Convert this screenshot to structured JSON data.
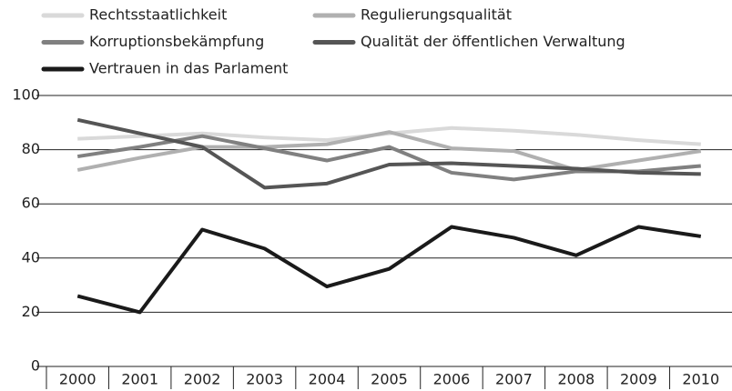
{
  "chart_data": {
    "type": "line",
    "categories": [
      "2000",
      "2001",
      "2002",
      "2003",
      "2004",
      "2005",
      "2006",
      "2007",
      "2008",
      "2009",
      "2010"
    ],
    "series": [
      {
        "name": "Rechtsstaatlichkeit",
        "color": "#d9d9d9",
        "values": [
          84,
          85,
          86,
          84.5,
          83.5,
          86,
          88,
          87,
          85.5,
          83.5,
          82
        ]
      },
      {
        "name": "Regulierungsqualität",
        "color": "#b0b0b0",
        "values": [
          72.5,
          77,
          81,
          81,
          82,
          86.5,
          80.5,
          79.5,
          72.5,
          76,
          79.5
        ]
      },
      {
        "name": "Korruptionsbekämpfung",
        "color": "#808080",
        "values": [
          77.5,
          81,
          85,
          80.5,
          76,
          81,
          71.5,
          69,
          72,
          72,
          74
        ]
      },
      {
        "name": "Qualität der öffentlichen Verwaltung",
        "color": "#555555",
        "values": [
          91,
          86,
          81,
          66,
          67.5,
          74.5,
          75,
          74,
          73,
          71.5,
          71
        ]
      },
      {
        "name": "Vertrauen in das Parlament",
        "color": "#1a1a1a",
        "values": [
          26,
          20,
          50.5,
          43.5,
          29.5,
          36,
          51.5,
          47.5,
          41,
          51.5,
          48
        ]
      }
    ],
    "ylim": [
      0,
      100
    ],
    "yticks": [
      0,
      20,
      40,
      60,
      80,
      100
    ],
    "grid": true
  }
}
